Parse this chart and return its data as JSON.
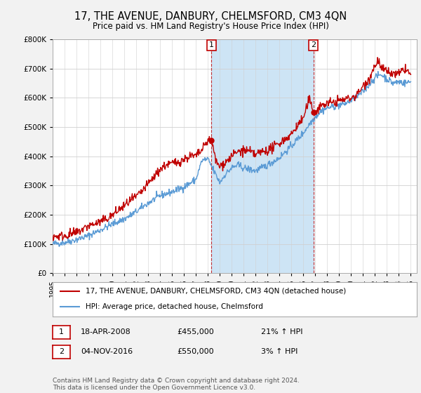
{
  "title": "17, THE AVENUE, DANBURY, CHELMSFORD, CM3 4QN",
  "subtitle": "Price paid vs. HM Land Registry's House Price Index (HPI)",
  "legend_line1": "17, THE AVENUE, DANBURY, CHELMSFORD, CM3 4QN (detached house)",
  "legend_line2": "HPI: Average price, detached house, Chelmsford",
  "footnote": "Contains HM Land Registry data © Crown copyright and database right 2024.\nThis data is licensed under the Open Government Licence v3.0.",
  "annotation1": {
    "label": "1",
    "date": "18-APR-2008",
    "price": "£455,000",
    "change": "21% ↑ HPI"
  },
  "annotation2": {
    "label": "2",
    "date": "04-NOV-2016",
    "price": "£550,000",
    "change": "3% ↑ HPI"
  },
  "ylim": [
    0,
    800000
  ],
  "yticks": [
    0,
    100000,
    200000,
    300000,
    400000,
    500000,
    600000,
    700000,
    800000
  ],
  "ytick_labels": [
    "£0",
    "£100K",
    "£200K",
    "£300K",
    "£400K",
    "£500K",
    "£600K",
    "£700K",
    "£800K"
  ],
  "hpi_color": "#5b9bd5",
  "price_color": "#c00000",
  "bg_color": "#ffffff",
  "fig_bg_color": "#f2f2f2",
  "shade_color": "#cde4f5",
  "grid_color": "#d0d0d0",
  "sale1_x": 2008.3,
  "sale1_y": 455000,
  "sale2_x": 2016.85,
  "sale2_y": 550000,
  "xmin": 1995,
  "xmax": 2025.5,
  "hpi_keypoints": [
    [
      1995.0,
      100000
    ],
    [
      1996.0,
      105000
    ],
    [
      1997.0,
      115000
    ],
    [
      1998.0,
      128000
    ],
    [
      1999.0,
      148000
    ],
    [
      2000.0,
      168000
    ],
    [
      2001.0,
      185000
    ],
    [
      2002.0,
      210000
    ],
    [
      2003.0,
      240000
    ],
    [
      2004.0,
      265000
    ],
    [
      2005.0,
      278000
    ],
    [
      2006.0,
      295000
    ],
    [
      2007.0,
      320000
    ],
    [
      2007.5,
      385000
    ],
    [
      2008.0,
      390000
    ],
    [
      2008.5,
      350000
    ],
    [
      2009.0,
      310000
    ],
    [
      2009.5,
      340000
    ],
    [
      2010.0,
      360000
    ],
    [
      2010.5,
      370000
    ],
    [
      2011.0,
      360000
    ],
    [
      2011.5,
      355000
    ],
    [
      2012.0,
      350000
    ],
    [
      2012.5,
      360000
    ],
    [
      2013.0,
      370000
    ],
    [
      2014.0,
      395000
    ],
    [
      2015.0,
      435000
    ],
    [
      2016.0,
      480000
    ],
    [
      2016.5,
      510000
    ],
    [
      2017.0,
      535000
    ],
    [
      2017.5,
      555000
    ],
    [
      2018.0,
      565000
    ],
    [
      2018.5,
      570000
    ],
    [
      2019.0,
      575000
    ],
    [
      2019.5,
      580000
    ],
    [
      2020.0,
      590000
    ],
    [
      2021.0,
      620000
    ],
    [
      2022.0,
      670000
    ],
    [
      2022.5,
      680000
    ],
    [
      2023.0,
      665000
    ],
    [
      2023.5,
      650000
    ],
    [
      2024.0,
      655000
    ],
    [
      2024.5,
      650000
    ],
    [
      2025.0,
      655000
    ]
  ],
  "price_keypoints": [
    [
      1995.0,
      125000
    ],
    [
      1996.0,
      128000
    ],
    [
      1997.0,
      138000
    ],
    [
      1997.5,
      150000
    ],
    [
      1998.0,
      162000
    ],
    [
      1998.5,
      168000
    ],
    [
      1999.0,
      175000
    ],
    [
      1999.5,
      185000
    ],
    [
      2000.0,
      198000
    ],
    [
      2000.5,
      215000
    ],
    [
      2001.0,
      230000
    ],
    [
      2001.5,
      248000
    ],
    [
      2002.0,
      260000
    ],
    [
      2002.5,
      280000
    ],
    [
      2003.0,
      305000
    ],
    [
      2003.5,
      330000
    ],
    [
      2004.0,
      355000
    ],
    [
      2004.5,
      370000
    ],
    [
      2005.0,
      375000
    ],
    [
      2005.5,
      380000
    ],
    [
      2006.0,
      390000
    ],
    [
      2006.5,
      400000
    ],
    [
      2007.0,
      400000
    ],
    [
      2007.5,
      420000
    ],
    [
      2008.0,
      455000
    ],
    [
      2008.3,
      455000
    ],
    [
      2008.7,
      380000
    ],
    [
      2009.0,
      365000
    ],
    [
      2009.5,
      380000
    ],
    [
      2010.0,
      400000
    ],
    [
      2010.5,
      415000
    ],
    [
      2011.0,
      420000
    ],
    [
      2011.5,
      415000
    ],
    [
      2012.0,
      405000
    ],
    [
      2012.5,
      415000
    ],
    [
      2013.0,
      420000
    ],
    [
      2013.5,
      430000
    ],
    [
      2014.0,
      445000
    ],
    [
      2014.5,
      460000
    ],
    [
      2015.0,
      475000
    ],
    [
      2015.5,
      505000
    ],
    [
      2016.0,
      530000
    ],
    [
      2016.5,
      595000
    ],
    [
      2016.85,
      550000
    ],
    [
      2017.0,
      550000
    ],
    [
      2017.5,
      575000
    ],
    [
      2018.0,
      580000
    ],
    [
      2018.5,
      585000
    ],
    [
      2019.0,
      590000
    ],
    [
      2019.5,
      595000
    ],
    [
      2020.0,
      600000
    ],
    [
      2020.5,
      610000
    ],
    [
      2021.0,
      640000
    ],
    [
      2021.5,
      665000
    ],
    [
      2022.0,
      710000
    ],
    [
      2022.3,
      730000
    ],
    [
      2022.5,
      700000
    ],
    [
      2023.0,
      690000
    ],
    [
      2023.5,
      680000
    ],
    [
      2024.0,
      680000
    ],
    [
      2024.5,
      700000
    ],
    [
      2025.0,
      680000
    ]
  ]
}
